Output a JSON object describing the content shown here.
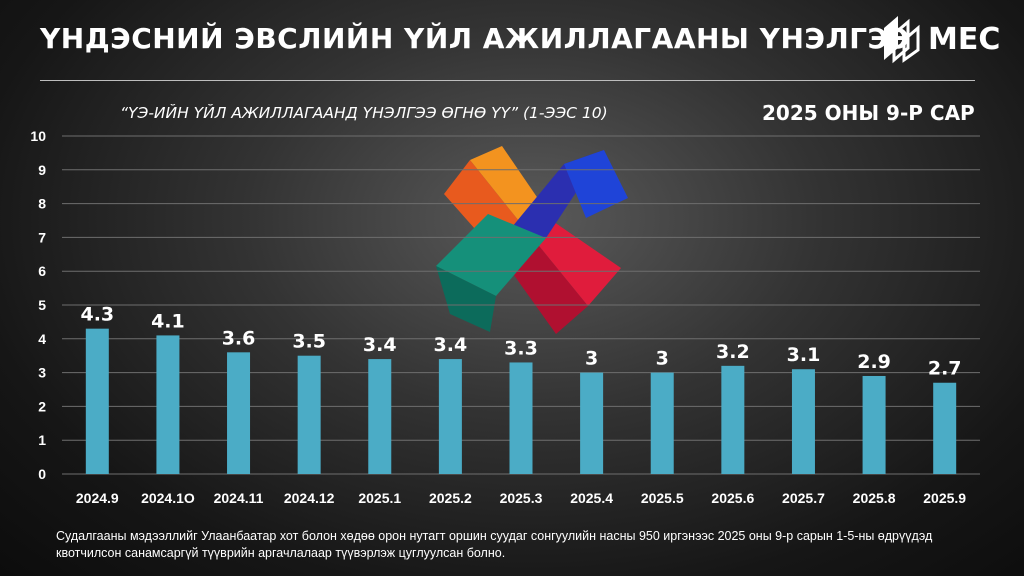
{
  "header": {
    "title": "ҮНДЭСНИЙ ЭВСЛИЙН ҮЙЛ АЖИЛЛАГААНЫ ҮНЭЛГЭЭ",
    "logo_text": "MEC"
  },
  "colors": {
    "bar": "#4bacc6",
    "background": "#1a1a1a",
    "text": "#ffffff",
    "grid": "#6e6e6e"
  },
  "chart_data": {
    "type": "bar",
    "title": "“ҮЭ-ИЙН ҮЙЛ АЖИЛЛАГААНД ҮНЭЛГЭЭ ӨГНӨ ҮҮ” (1-ЭЭС 10)",
    "subtitle": "2025 ОНЫ 9-Р САР",
    "xlabel": "",
    "ylabel": "",
    "categories": [
      "2024.9",
      "2024.1O",
      "2024.11",
      "2024.12",
      "2025.1",
      "2025.2",
      "2025.3",
      "2025.4",
      "2025.5",
      "2025.6",
      "2025.7",
      "2025.8",
      "2025.9"
    ],
    "values": [
      4.3,
      4.1,
      3.6,
      3.5,
      3.4,
      3.4,
      3.3,
      3,
      3,
      3.2,
      3.1,
      2.9,
      2.7
    ],
    "ylim": [
      0,
      10
    ],
    "yticks": [
      "0",
      "1",
      "2",
      "3",
      "4",
      "5",
      "6",
      "7",
      "8",
      "9",
      "10"
    ],
    "grid": true,
    "legend": "none"
  },
  "footnote": "Судалгааны мэдээллийг Улаанбаатар хот болон хөдөө орон нутагт оршин суудаг сонгуулийн насны 950 иргэнээс 2025 оны 9-р сарын 1-5-ны өдрүүдэд квотчилсон санамсаргүй түүврийн аргачлалаар түүвэрлэж цуглуулсан болно."
}
